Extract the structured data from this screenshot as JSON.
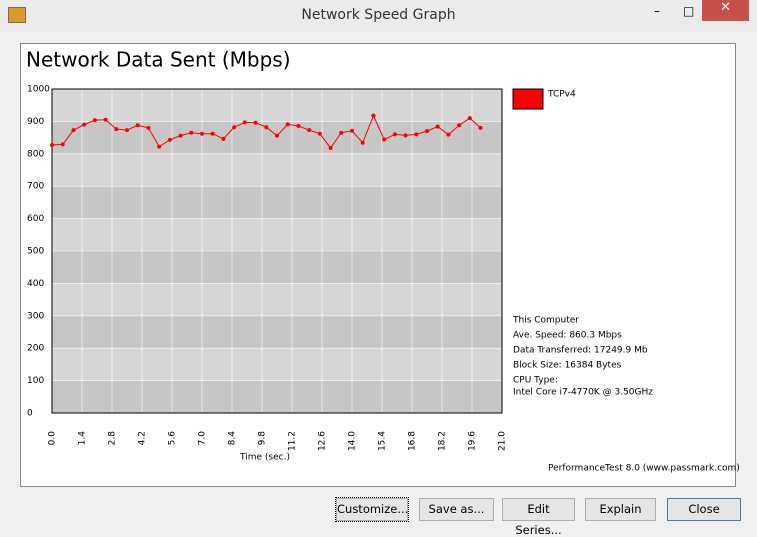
{
  "window": {
    "title": "Network Speed Graph"
  },
  "chart_data": {
    "type": "line",
    "title": "Network Data Sent (Mbps)",
    "xlabel": "Time (sec.)",
    "x": [
      0,
      0.5,
      1,
      1.5,
      2,
      2.5,
      3,
      3.5,
      4,
      4.5,
      5,
      5.5,
      6,
      6.5,
      7,
      7.5,
      8,
      8.5,
      9,
      9.5,
      10,
      10.5,
      11,
      11.5,
      12,
      12.5,
      13,
      13.5,
      14,
      14.5,
      15,
      15.5,
      16,
      16.5,
      17,
      17.5,
      18,
      18.5,
      19,
      19.5,
      20
    ],
    "series": [
      {
        "name": "TCPv4",
        "color": "#ff0000",
        "values": [
          827,
          829,
          873,
          890,
          904,
          905,
          876,
          873,
          888,
          880,
          822,
          843,
          856,
          865,
          862,
          862,
          846,
          882,
          897,
          896,
          882,
          856,
          891,
          886,
          873,
          862,
          818,
          865,
          871,
          834,
          918,
          844,
          860,
          857,
          860,
          870,
          884,
          859,
          888,
          910,
          880
        ]
      }
    ],
    "xlim": [
      0,
      21
    ],
    "xticks": [
      {
        "value": 0,
        "label": "0.0"
      },
      1.4,
      2.8,
      4.2,
      5.6,
      {
        "value": 7,
        "label": "7.0"
      },
      8.4,
      9.8,
      11.2,
      12.6,
      {
        "value": 14,
        "label": "14.0"
      },
      15.4,
      16.8,
      18.2,
      19.6,
      {
        "value": 21,
        "label": "21.0"
      }
    ],
    "ylim": [
      0,
      1000
    ],
    "yticks": [
      0,
      100,
      200,
      300,
      400,
      500,
      600,
      700,
      800,
      900,
      1000
    ],
    "grid": true
  },
  "info": [
    "This Computer",
    "Ave. Speed: 860.3 Mbps",
    "Data Transferred: 17249.9 Mb",
    "Block Size: 16384 Bytes",
    "CPU Type:",
    "Intel Core i7-4770K @ 3.50GHz"
  ],
  "footer": "PerformanceTest 8.0 (www.passmark.com)",
  "buttons": [
    "Customize...",
    "Save as...",
    "Edit Series...",
    "Explain",
    "Close"
  ]
}
